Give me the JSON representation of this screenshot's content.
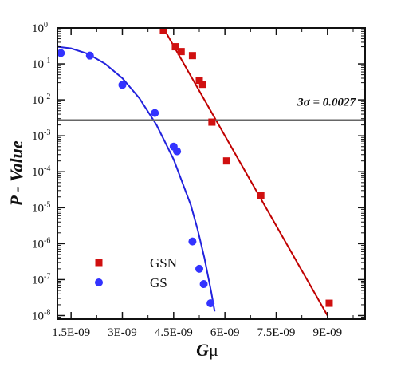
{
  "chart_data": {
    "type": "scatter",
    "title": "",
    "xlabel_main": "G",
    "xlabel_sym": "μ",
    "ylabel": "P - Value",
    "xlim": [
      1.1e-09,
      1.01e-08
    ],
    "ylim_log10": [
      -8.1,
      0
    ],
    "x_ticks": [
      {
        "value": 1.5e-09,
        "label": "1.5E-09"
      },
      {
        "value": 3e-09,
        "label": "3E-09"
      },
      {
        "value": 4.5e-09,
        "label": "4.5E-09"
      },
      {
        "value": 6e-09,
        "label": "6E-09"
      },
      {
        "value": 7.5e-09,
        "label": "7.5E-09"
      },
      {
        "value": 9e-09,
        "label": "9E-09"
      }
    ],
    "y_ticks": [
      {
        "exp": 0,
        "base": "10",
        "sup": "0"
      },
      {
        "exp": -1,
        "base": "10",
        "sup": "-1"
      },
      {
        "exp": -2,
        "base": "10",
        "sup": "-2"
      },
      {
        "exp": -3,
        "base": "10",
        "sup": "-3"
      },
      {
        "exp": -4,
        "base": "10",
        "sup": "-4"
      },
      {
        "exp": -5,
        "base": "10",
        "sup": "-5"
      },
      {
        "exp": -6,
        "base": "10",
        "sup": "-6"
      },
      {
        "exp": -7,
        "base": "10",
        "sup": "-7"
      },
      {
        "exp": -8,
        "base": "10",
        "sup": "-8"
      }
    ],
    "threshold": {
      "value": 0.0027,
      "label": "3σ = 0.0027",
      "color": "#666666"
    },
    "series": [
      {
        "name": "GSN",
        "marker": "square",
        "color": "#d01010",
        "points": [
          {
            "x": 4.2e-09,
            "y": 0.85
          },
          {
            "x": 4.55e-09,
            "y": 0.3
          },
          {
            "x": 4.72e-09,
            "y": 0.22
          },
          {
            "x": 5.05e-09,
            "y": 0.17
          },
          {
            "x": 5.25e-09,
            "y": 0.035
          },
          {
            "x": 5.35e-09,
            "y": 0.027
          },
          {
            "x": 5.62e-09,
            "y": 0.0024
          },
          {
            "x": 6.05e-09,
            "y": 0.0002
          },
          {
            "x": 7.05e-09,
            "y": 2.2e-05
          },
          {
            "x": 9.05e-09,
            "y": 2.2e-08
          }
        ],
        "fit": {
          "color": "#c00000",
          "from": [
            4.2e-09,
            1.0
          ],
          "to": [
            9e-09,
            1e-08
          ]
        }
      },
      {
        "name": "GS",
        "marker": "circle",
        "color": "#3333ff",
        "points": [
          {
            "x": 1.2e-09,
            "y": 0.2
          },
          {
            "x": 2.05e-09,
            "y": 0.17
          },
          {
            "x": 3e-09,
            "y": 0.026
          },
          {
            "x": 3.95e-09,
            "y": 0.0043
          },
          {
            "x": 4.5e-09,
            "y": 0.0005
          },
          {
            "x": 4.6e-09,
            "y": 0.00037
          },
          {
            "x": 5.05e-09,
            "y": 1.15e-06
          },
          {
            "x": 5.25e-09,
            "y": 2e-07
          },
          {
            "x": 5.38e-09,
            "y": 7.5e-08
          },
          {
            "x": 5.58e-09,
            "y": 2.2e-08
          }
        ],
        "fit": {
          "color": "#2222dd",
          "curve": [
            [
              1.1e-09,
              0.3
            ],
            [
              1.5e-09,
              0.27
            ],
            [
              2e-09,
              0.19
            ],
            [
              2.5e-09,
              0.1
            ],
            [
              3e-09,
              0.04
            ],
            [
              3.5e-09,
              0.011
            ],
            [
              4e-09,
              0.002
            ],
            [
              4.5e-09,
              0.00022
            ],
            [
              5e-09,
              1.2e-05
            ],
            [
              5.2e-09,
              2.5e-06
            ],
            [
              5.4e-09,
              4e-07
            ],
            [
              5.6e-09,
              4.5e-08
            ],
            [
              5.7e-09,
              1.3e-08
            ]
          ]
        }
      }
    ],
    "legend": {
      "position": "bottom-left",
      "items": [
        {
          "label": "GSN",
          "marker": "square",
          "color": "#d01010"
        },
        {
          "label": "GS",
          "marker": "circle",
          "color": "#3333ff"
        }
      ]
    }
  }
}
